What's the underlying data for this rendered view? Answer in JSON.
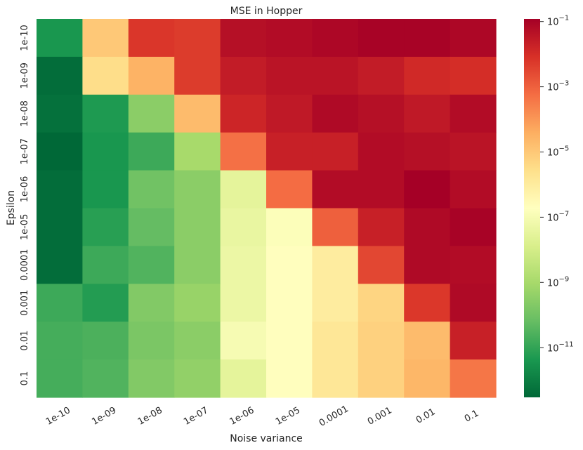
{
  "chart_data": {
    "type": "heatmap",
    "title": "MSE in Hopper",
    "xlabel": "Noise variance",
    "ylabel": "Epsilon",
    "x_categories": [
      "1e-10",
      "1e-09",
      "1e-08",
      "1e-07",
      "1e-06",
      "1e-05",
      "0.0001",
      "0.001",
      "0.01",
      "0.1"
    ],
    "y_categories": [
      "1e-10",
      "1e-09",
      "1e-08",
      "1e-07",
      "1e-06",
      "1e-05",
      "0.0001",
      "0.001",
      "0.01",
      "0.1"
    ],
    "color_scale": "log",
    "colormap": "RdYlGn_r",
    "vmin": 3e-13,
    "vmax": 0.12,
    "colorbar_ticks": [
      {
        "value": 0.1,
        "base": "10",
        "exp": "−1"
      },
      {
        "value": 0.001,
        "base": "10",
        "exp": "−3"
      },
      {
        "value": 1e-05,
        "base": "10",
        "exp": "−5"
      },
      {
        "value": 1e-07,
        "base": "10",
        "exp": "−7"
      },
      {
        "value": 1e-09,
        "base": "10",
        "exp": "−9"
      },
      {
        "value": 1e-11,
        "base": "10",
        "exp": "−11"
      }
    ],
    "values": [
      [
        4e-12,
        1e-05,
        0.0063,
        0.005,
        0.05,
        0.06,
        0.08,
        0.1,
        0.1,
        0.08
      ],
      [
        4e-13,
        3e-06,
        3e-05,
        0.005,
        0.025,
        0.04,
        0.04,
        0.025,
        0.012,
        0.01
      ],
      [
        5e-13,
        5e-12,
        3e-10,
        2e-05,
        0.015,
        0.03,
        0.07,
        0.05,
        0.03,
        0.06
      ],
      [
        3e-13,
        4e-12,
        1.5e-11,
        1e-09,
        0.0005,
        0.02,
        0.02,
        0.06,
        0.05,
        0.04
      ],
      [
        4e-13,
        4e-12,
        1e-10,
        3e-10,
        3e-08,
        0.0006,
        0.06,
        0.06,
        0.12,
        0.06
      ],
      [
        4e-13,
        7e-12,
        6e-11,
        3e-10,
        4e-08,
        1.5e-07,
        0.001,
        0.02,
        0.07,
        0.1
      ],
      [
        4e-13,
        1.5e-11,
        3e-11,
        3e-10,
        5e-08,
        2e-07,
        1e-06,
        0.003,
        0.07,
        0.06
      ],
      [
        1.5e-11,
        6e-12,
        2e-10,
        5e-10,
        5e-08,
        2e-07,
        1e-06,
        5e-06,
        0.006,
        0.07
      ],
      [
        2e-11,
        2.5e-11,
        1.5e-10,
        3e-10,
        1e-07,
        2e-07,
        1.5e-06,
        6e-06,
        2e-05,
        0.02
      ],
      [
        2e-11,
        3e-11,
        2e-10,
        4e-10,
        3e-08,
        2e-07,
        1.5e-06,
        6e-06,
        2.5e-05,
        0.0004
      ]
    ]
  }
}
